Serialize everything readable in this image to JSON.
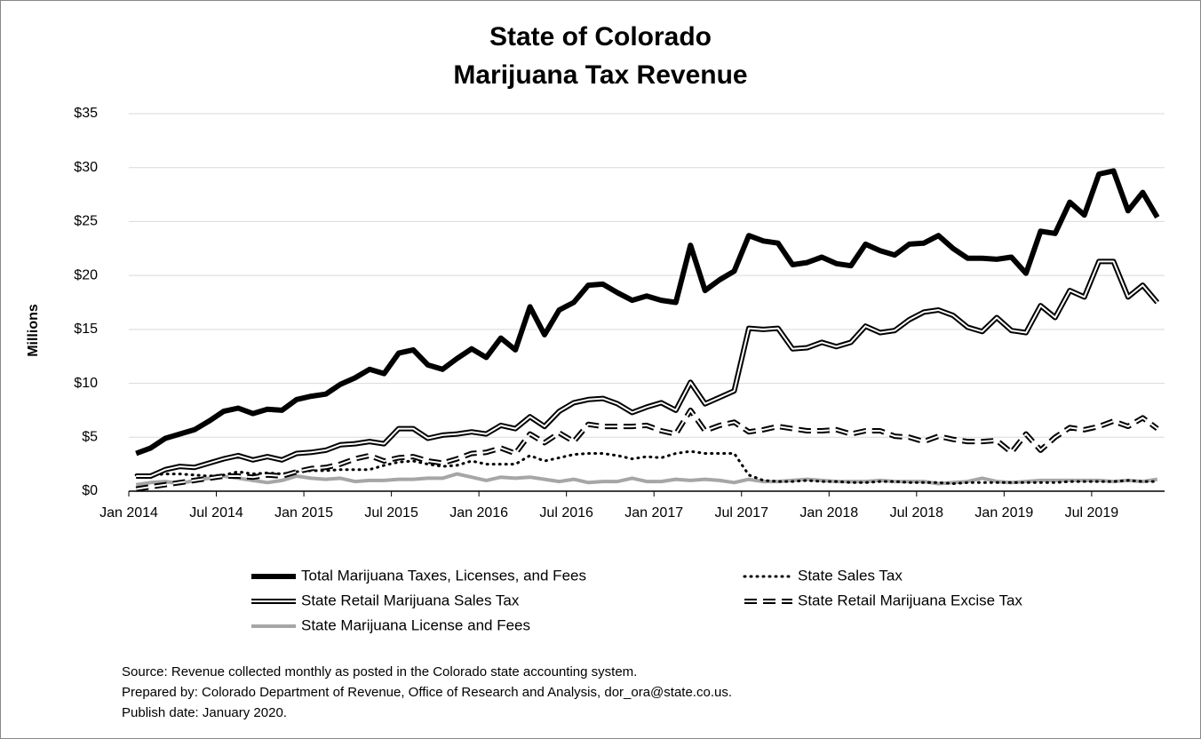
{
  "chart_data": {
    "type": "line",
    "title": [
      "State of Colorado",
      "Marijuana Tax Revenue"
    ],
    "ylabel": "Millions",
    "categories": [
      "Jan 2014",
      null,
      null,
      null,
      null,
      null,
      "Jul 2014",
      null,
      null,
      null,
      null,
      null,
      "Jan 2015",
      null,
      null,
      null,
      null,
      null,
      "Jul 2015",
      null,
      null,
      null,
      null,
      null,
      "Jan 2016",
      null,
      null,
      null,
      null,
      null,
      "Jul 2016",
      null,
      null,
      null,
      null,
      null,
      "Jan 2017",
      null,
      null,
      null,
      null,
      null,
      "Jul 2017",
      null,
      null,
      null,
      null,
      null,
      "Jan 2018",
      null,
      null,
      null,
      null,
      null,
      "Jul 2018",
      null,
      null,
      null,
      null,
      null,
      "Jan 2019",
      null,
      null,
      null,
      null,
      null,
      "Jul 2019",
      null,
      null,
      null,
      null
    ],
    "ylim": [
      0,
      35
    ],
    "yticks": [
      {
        "value": 0,
        "label": "$0"
      },
      {
        "value": 5,
        "label": "$5"
      },
      {
        "value": 10,
        "label": "$10"
      },
      {
        "value": 15,
        "label": "$15"
      },
      {
        "value": 20,
        "label": "$20"
      },
      {
        "value": 25,
        "label": "$25"
      },
      {
        "value": 30,
        "label": "$30"
      },
      {
        "value": 35,
        "label": "$35"
      }
    ],
    "grid": true,
    "legend": "bottom",
    "series": [
      {
        "name": "Total Marijuana Taxes, Licenses, and Fees",
        "color": "#000000",
        "line_style": "thick",
        "values": [
          3.5,
          4.0,
          4.9,
          5.3,
          5.7,
          6.5,
          7.4,
          7.7,
          7.2,
          7.6,
          7.5,
          8.5,
          8.8,
          9.0,
          9.9,
          10.5,
          11.3,
          10.9,
          12.8,
          13.1,
          11.7,
          11.3,
          12.3,
          13.2,
          12.4,
          14.2,
          13.1,
          17.1,
          14.5,
          16.8,
          17.5,
          19.1,
          19.2,
          18.4,
          17.7,
          18.1,
          17.7,
          17.5,
          22.8,
          18.6,
          19.6,
          20.4,
          23.7,
          23.2,
          23.0,
          21.0,
          21.2,
          21.7,
          21.1,
          20.9,
          22.9,
          22.3,
          21.9,
          22.9,
          23.0,
          23.7,
          22.5,
          21.6,
          21.6,
          21.5,
          21.7,
          20.2,
          24.1,
          23.9,
          26.8,
          25.6,
          29.4,
          29.7,
          26.0,
          27.7,
          25.4
        ]
      },
      {
        "name": "State Sales Tax",
        "color": "#000000",
        "line_style": "dotted",
        "values": [
          1.5,
          1.5,
          1.6,
          1.6,
          1.5,
          1.4,
          1.5,
          1.8,
          1.6,
          1.7,
          1.6,
          1.8,
          1.9,
          1.9,
          2.0,
          2.0,
          2.0,
          2.4,
          2.7,
          2.8,
          2.5,
          2.3,
          2.4,
          2.8,
          2.5,
          2.5,
          2.5,
          3.3,
          2.8,
          3.1,
          3.4,
          3.5,
          3.5,
          3.3,
          3.0,
          3.2,
          3.1,
          3.5,
          3.7,
          3.5,
          3.5,
          3.5,
          1.5,
          1.0,
          0.9,
          0.9,
          1.0,
          0.9,
          0.9,
          0.8,
          0.8,
          0.9,
          0.9,
          0.8,
          0.8,
          0.8,
          0.7,
          0.8,
          0.8,
          0.8,
          0.8,
          0.8,
          0.8,
          0.8,
          0.9,
          0.9,
          0.9,
          0.9,
          1.0,
          0.9,
          0.9
        ]
      },
      {
        "name": "State Retail Marijuana Sales Tax",
        "color": "#000000",
        "line_style": "double",
        "values": [
          1.4,
          1.4,
          2.0,
          2.3,
          2.2,
          2.6,
          3.0,
          3.3,
          2.9,
          3.2,
          2.9,
          3.5,
          3.6,
          3.8,
          4.3,
          4.4,
          4.6,
          4.4,
          5.8,
          5.8,
          4.9,
          5.2,
          5.3,
          5.5,
          5.3,
          6.1,
          5.8,
          6.9,
          6.0,
          7.4,
          8.2,
          8.5,
          8.6,
          8.1,
          7.3,
          7.8,
          8.2,
          7.5,
          10.1,
          8.1,
          8.7,
          9.3,
          15.1,
          15.0,
          15.1,
          13.2,
          13.3,
          13.8,
          13.4,
          13.8,
          15.3,
          14.7,
          14.9,
          15.9,
          16.6,
          16.8,
          16.3,
          15.2,
          14.8,
          16.1,
          14.9,
          14.7,
          17.2,
          16.1,
          18.6,
          18.0,
          21.3,
          21.3,
          18.0,
          19.1,
          17.5
        ]
      },
      {
        "name": "State Retail Marijuana Excise Tax",
        "color": "#000000",
        "line_style": "dashed",
        "values": [
          0.2,
          0.4,
          0.6,
          0.8,
          1.0,
          1.2,
          1.4,
          1.4,
          1.3,
          1.5,
          1.4,
          1.8,
          2.1,
          2.2,
          2.5,
          3.0,
          3.3,
          2.8,
          3.1,
          3.2,
          2.8,
          2.6,
          3.0,
          3.5,
          3.6,
          4.0,
          3.5,
          5.3,
          4.5,
          5.4,
          4.6,
          6.2,
          6.0,
          6.0,
          6.0,
          6.1,
          5.6,
          5.3,
          7.5,
          5.6,
          6.1,
          6.4,
          5.5,
          5.7,
          6.0,
          5.8,
          5.6,
          5.6,
          5.7,
          5.3,
          5.6,
          5.6,
          5.1,
          5.0,
          4.6,
          5.1,
          4.8,
          4.6,
          4.6,
          4.7,
          3.6,
          5.3,
          3.8,
          5.0,
          5.9,
          5.7,
          6.0,
          6.5,
          6.0,
          6.8,
          5.8
        ]
      },
      {
        "name": "State Marijuana License and Fees",
        "color": "#a6a6a6",
        "line_style": "gray",
        "values": [
          0.6,
          0.8,
          0.9,
          0.7,
          1.0,
          1.2,
          1.4,
          1.2,
          1.0,
          0.8,
          1.0,
          1.4,
          1.2,
          1.1,
          1.2,
          0.9,
          1.0,
          1.0,
          1.1,
          1.1,
          1.2,
          1.2,
          1.6,
          1.3,
          1.0,
          1.3,
          1.2,
          1.3,
          1.1,
          0.9,
          1.1,
          0.8,
          0.9,
          0.9,
          1.2,
          0.9,
          0.9,
          1.1,
          1.0,
          1.1,
          1.0,
          0.8,
          1.1,
          0.9,
          0.9,
          1.0,
          1.1,
          1.0,
          0.9,
          0.9,
          0.9,
          1.0,
          0.9,
          0.9,
          0.9,
          0.7,
          0.8,
          0.9,
          1.2,
          0.9,
          0.8,
          0.9,
          1.0,
          1.0,
          1.0,
          1.0,
          1.0,
          0.9,
          1.0,
          0.9,
          1.1
        ]
      }
    ],
    "footnotes": [
      "Source: Revenue collected monthly as posted in the Colorado state accounting system.",
      "Prepared by: Colorado Department of Revenue, Office of Research and Analysis, dor_ora@state.co.us.",
      "Publish date: January 2020."
    ]
  }
}
